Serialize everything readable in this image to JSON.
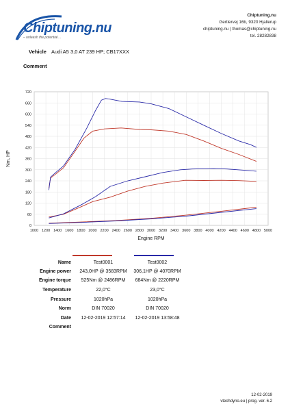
{
  "header": {
    "logo_text": "Chiptuning.nu",
    "logo_tagline": "– unleash the potential…",
    "company_name": "Chiptuning.nu",
    "address": "Gertlervej 16b, 9320 Hjallerup",
    "contact": "chiptuning.nu | thomas@chiptuning.nu",
    "phone": "tel. 28282838"
  },
  "vehicle": {
    "label": "Vehicle",
    "value": "Audi A5 3,0 AT 239 HP; CB17XXX"
  },
  "comment_label": "Comment",
  "colors": {
    "test1": "#c0392b",
    "test2": "#2a2aa8"
  },
  "chart_data": {
    "type": "line",
    "xlabel": "Engine RPM",
    "ylabel": "Nm, HP",
    "xlim": [
      1000,
      5000
    ],
    "ylim": [
      0,
      720
    ],
    "xticks": [
      1000,
      1200,
      1400,
      1600,
      1800,
      2000,
      2200,
      2400,
      2600,
      2800,
      3000,
      3200,
      3400,
      3600,
      3800,
      4000,
      4200,
      4400,
      4600,
      4800,
      5000
    ],
    "yticks": [
      0,
      60,
      120,
      180,
      240,
      300,
      360,
      420,
      480,
      540,
      600,
      660,
      720
    ],
    "grid": true,
    "series": [
      {
        "key": "t1_torque",
        "color": "#c0392b",
        "points": [
          [
            1250,
            200
          ],
          [
            1280,
            255
          ],
          [
            1350,
            272
          ],
          [
            1500,
            310
          ],
          [
            1700,
            400
          ],
          [
            1850,
            470
          ],
          [
            2000,
            508
          ],
          [
            2200,
            520
          ],
          [
            2486,
            525
          ],
          [
            2800,
            517
          ],
          [
            3000,
            515
          ],
          [
            3300,
            508
          ],
          [
            3600,
            490
          ],
          [
            3900,
            455
          ],
          [
            4200,
            415
          ],
          [
            4500,
            382
          ],
          [
            4800,
            345
          ]
        ]
      },
      {
        "key": "t2_torque",
        "color": "#2a2aa8",
        "points": [
          [
            1250,
            190
          ],
          [
            1280,
            260
          ],
          [
            1350,
            280
          ],
          [
            1500,
            320
          ],
          [
            1700,
            410
          ],
          [
            1900,
            525
          ],
          [
            2050,
            620
          ],
          [
            2150,
            675
          ],
          [
            2220,
            684
          ],
          [
            2300,
            680
          ],
          [
            2500,
            668
          ],
          [
            2800,
            665
          ],
          [
            3000,
            655
          ],
          [
            3300,
            630
          ],
          [
            3600,
            585
          ],
          [
            3900,
            540
          ],
          [
            4200,
            495
          ],
          [
            4500,
            455
          ],
          [
            4700,
            435
          ],
          [
            4800,
            420
          ]
        ]
      },
      {
        "key": "t1_power",
        "color": "#c0392b",
        "points": [
          [
            1250,
            45
          ],
          [
            1500,
            60
          ],
          [
            1800,
            100
          ],
          [
            2000,
            128
          ],
          [
            2300,
            152
          ],
          [
            2600,
            185
          ],
          [
            2900,
            210
          ],
          [
            3200,
            228
          ],
          [
            3583,
            243
          ],
          [
            3900,
            242
          ],
          [
            4200,
            243
          ],
          [
            4500,
            241
          ],
          [
            4800,
            237
          ]
        ]
      },
      {
        "key": "t2_power",
        "color": "#2a2aa8",
        "points": [
          [
            1250,
            40
          ],
          [
            1500,
            62
          ],
          [
            1800,
            110
          ],
          [
            2050,
            155
          ],
          [
            2300,
            210
          ],
          [
            2600,
            240
          ],
          [
            2900,
            262
          ],
          [
            3200,
            285
          ],
          [
            3500,
            300
          ],
          [
            3700,
            304
          ],
          [
            4070,
            306
          ],
          [
            4300,
            304
          ],
          [
            4600,
            297
          ],
          [
            4800,
            292
          ]
        ]
      },
      {
        "key": "t1_loss",
        "color": "#c0392b",
        "points": [
          [
            1250,
            12
          ],
          [
            1800,
            18
          ],
          [
            2400,
            26
          ],
          [
            3000,
            38
          ],
          [
            3600,
            55
          ],
          [
            4200,
            76
          ],
          [
            4800,
            98
          ]
        ]
      },
      {
        "key": "t2_loss",
        "color": "#2a2aa8",
        "points": [
          [
            1250,
            10
          ],
          [
            1800,
            16
          ],
          [
            2400,
            24
          ],
          [
            3000,
            35
          ],
          [
            3600,
            50
          ],
          [
            4200,
            70
          ],
          [
            4800,
            90
          ]
        ]
      }
    ]
  },
  "results": {
    "labels": {
      "name": "Name",
      "power": "Engine power",
      "torque": "Engine torque",
      "temperature": "Temperature",
      "pressure": "Pressure",
      "norm": "Norm",
      "date": "Date",
      "comment": "Comment"
    },
    "test1": {
      "name": "Test0001",
      "power": "243,0HP @  3583RPM",
      "torque": "525Nm @ 2486RPM",
      "temperature": "22,0°C",
      "pressure": "1020hPa",
      "norm": "DIN 70020",
      "date": "12-02-2019  12:57:14"
    },
    "test2": {
      "name": "Test0002",
      "power": "306,1HP @  4070RPM",
      "torque": "684Nm @ 2220RPM",
      "temperature": "23,0°C",
      "pressure": "1020hPa",
      "norm": "DIN 70020",
      "date": "12-02-2019  13:58:48"
    }
  },
  "footer": {
    "date": "12-02-2019",
    "version": "vtechdyno.eu | prog. ver. 6.2"
  }
}
